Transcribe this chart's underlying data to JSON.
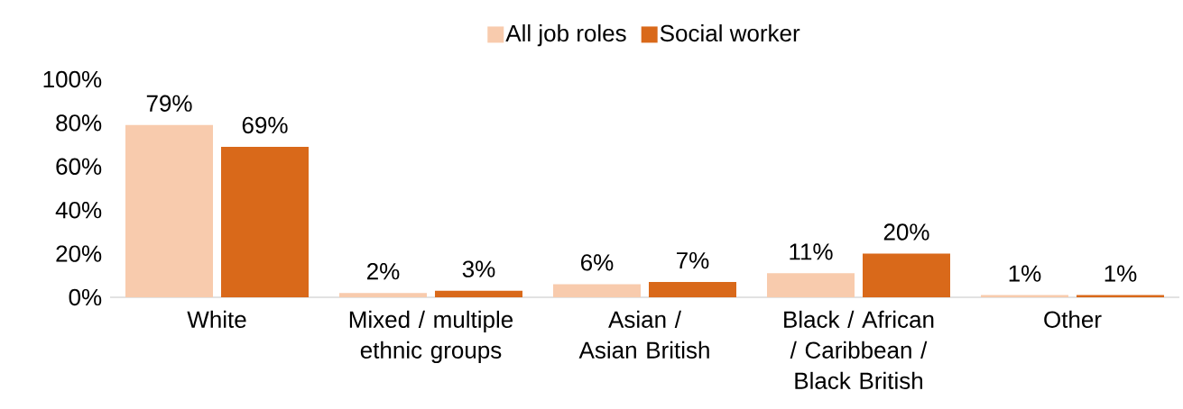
{
  "chart_data": {
    "type": "bar",
    "categories": [
      "White",
      "Mixed / multiple ethnic groups",
      "Asian / Asian British",
      "Black / African / Caribbean / Black British",
      "Other"
    ],
    "series": [
      {
        "name": "All job roles",
        "color": "#f8cbad",
        "values": [
          79,
          2,
          6,
          11,
          1
        ],
        "value_labels": [
          "79%",
          "2%",
          "6%",
          "11%",
          "1%"
        ]
      },
      {
        "name": "Social worker",
        "color": "#d9691a",
        "values": [
          69,
          3,
          7,
          20,
          1
        ],
        "value_labels": [
          "69%",
          "3%",
          "7%",
          "20%",
          "1%"
        ]
      }
    ],
    "ylim": [
      0,
      100
    ],
    "yticks": [
      {
        "value": 0,
        "label": "0%"
      },
      {
        "value": 20,
        "label": "20%"
      },
      {
        "value": 40,
        "label": "40%"
      },
      {
        "value": 60,
        "label": "60%"
      },
      {
        "value": 80,
        "label": "80%"
      },
      {
        "value": 100,
        "label": "100%"
      }
    ],
    "grid": false,
    "legend": "top"
  }
}
